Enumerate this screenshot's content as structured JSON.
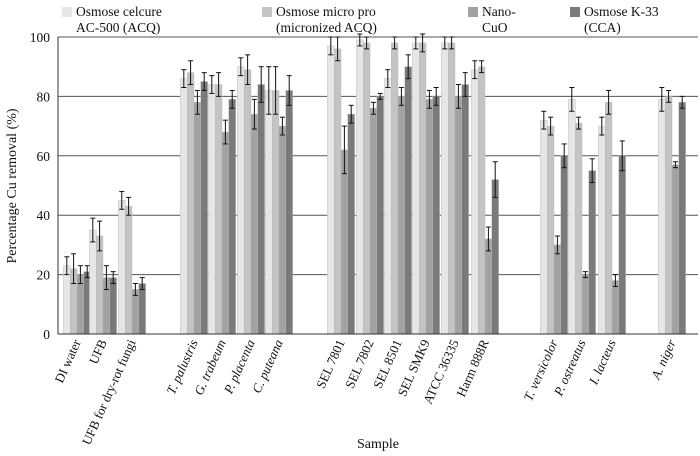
{
  "chart_data": {
    "type": "bar",
    "xlabel": "Sample",
    "ylabel": "Percentage Cu removal (%)",
    "ylim": [
      0,
      100
    ],
    "yticks": [
      0,
      20,
      40,
      60,
      80,
      100
    ],
    "grid": true,
    "legend_position": "top",
    "error_bars": true,
    "series": [
      {
        "name_line1": "Osmose celcure",
        "name_line2": "AC-500 (ACQ)",
        "color": "#e6e6e6"
      },
      {
        "name_line1": "Osmose micro pro",
        "name_line2": "(micronized ACQ)",
        "color": "#c4c4c4"
      },
      {
        "name_line1": "Nano-",
        "name_line2": "CuO",
        "color": "#a2a2a2"
      },
      {
        "name_line1": "Osmose K-33",
        "name_line2": "(CCA)",
        "color": "#7a7a7a"
      }
    ],
    "groups": [
      {
        "label": "DI water",
        "italic": false,
        "values": [
          23,
          22,
          20,
          21
        ],
        "errors": [
          3,
          5,
          3,
          2
        ]
      },
      {
        "label": "UFB",
        "italic": false,
        "values": [
          35,
          33,
          19,
          19
        ],
        "errors": [
          4,
          5,
          4,
          2
        ]
      },
      {
        "label": "UFB for dry-rot fungi",
        "italic": false,
        "values": [
          45,
          43,
          15,
          17
        ],
        "errors": [
          3,
          3,
          2,
          2
        ]
      },
      {
        "label": "T. palustris",
        "italic": true,
        "values": [
          86,
          88,
          78,
          85
        ],
        "errors": [
          3,
          4,
          4,
          3
        ]
      },
      {
        "label": "G. trabeum",
        "italic": true,
        "values": [
          84,
          84,
          68,
          79
        ],
        "errors": [
          3,
          4,
          4,
          3
        ]
      },
      {
        "label": "P. placenta",
        "italic": true,
        "values": [
          90,
          89,
          74,
          84
        ],
        "errors": [
          3,
          5,
          5,
          6
        ]
      },
      {
        "label": "C. puteana",
        "italic": true,
        "values": [
          82,
          82,
          70,
          82
        ],
        "errors": [
          8,
          8,
          3,
          5
        ]
      },
      {
        "label": "SEL 7801",
        "italic": false,
        "values": [
          97,
          96,
          62,
          74
        ],
        "errors": [
          3,
          4,
          8,
          3
        ]
      },
      {
        "label": "SEL 7802",
        "italic": false,
        "values": [
          99,
          98,
          76,
          80
        ],
        "errors": [
          2,
          2,
          2,
          1
        ]
      },
      {
        "label": "SEL 8501",
        "italic": false,
        "values": [
          86,
          98,
          80,
          90
        ],
        "errors": [
          3,
          2,
          3,
          4
        ]
      },
      {
        "label": "SEL SMK9",
        "italic": false,
        "values": [
          98,
          98,
          79,
          80
        ],
        "errors": [
          2,
          3,
          3,
          3
        ]
      },
      {
        "label": "ATCC 36335",
        "italic": false,
        "values": [
          98,
          98,
          80,
          84
        ],
        "errors": [
          2,
          2,
          4,
          4
        ]
      },
      {
        "label": "Harm 888R",
        "italic": false,
        "values": [
          89,
          90,
          32,
          52
        ],
        "errors": [
          3,
          2,
          4,
          6
        ]
      },
      {
        "label": "T. versicolor",
        "italic": true,
        "values": [
          72,
          70,
          30,
          60
        ],
        "errors": [
          3,
          3,
          3,
          4
        ]
      },
      {
        "label": "P. ostreatus",
        "italic": true,
        "values": [
          79,
          71,
          20,
          55
        ],
        "errors": [
          4,
          2,
          1,
          4
        ]
      },
      {
        "label": "I. lacteus",
        "italic": true,
        "values": [
          70,
          78,
          18,
          60
        ],
        "errors": [
          3,
          4,
          2,
          5
        ]
      },
      {
        "label": "A. niger",
        "italic": true,
        "values": [
          79,
          80,
          57,
          78
        ],
        "errors": [
          4,
          2,
          1,
          2
        ]
      }
    ]
  }
}
